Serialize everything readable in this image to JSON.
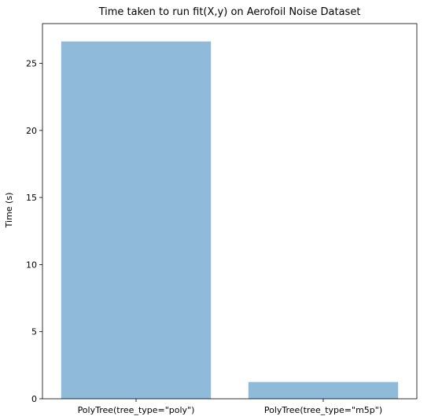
{
  "chart_data": {
    "type": "bar",
    "title": "Time taken to run fit(X,y) on Aerofoil Noise Dataset",
    "xlabel": "",
    "ylabel": "Time (s)",
    "categories": [
      "PolyTree(tree_type=\"poly\")",
      "PolyTree(tree_type=\"m5p\")"
    ],
    "values": [
      26.63,
      1.25
    ],
    "ylim": [
      0,
      27.96
    ],
    "yticks": [
      0,
      5,
      10,
      15,
      20,
      25
    ],
    "ytick_labels": [
      "0",
      "5",
      "10",
      "15",
      "20",
      "25"
    ],
    "bar_color": "#8fbad9",
    "grid": false,
    "legend": "none"
  }
}
